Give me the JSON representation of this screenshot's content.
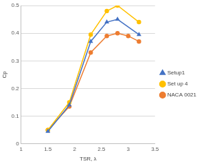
{
  "chart_data": {
    "type": "line",
    "x_label": "TSR, λ",
    "y_label": "Cp",
    "xlim": [
      1,
      3.5
    ],
    "xticks": [
      1,
      1.5,
      2,
      2.5,
      3,
      3.5
    ],
    "ylim": [
      0,
      0.5
    ],
    "yticks": [
      0,
      0.1,
      0.2,
      0.3,
      0.4,
      0.5
    ],
    "grid": "y",
    "legend": "right",
    "series": [
      {
        "name": "Setup1",
        "color": "#4472c4",
        "marker": "triangle",
        "x": [
          1.5,
          1.9,
          2.3,
          2.6,
          2.8,
          3.2
        ],
        "values": [
          0.045,
          0.14,
          0.37,
          0.44,
          0.45,
          0.395
        ]
      },
      {
        "name": "Set up 4",
        "color": "#ffc000",
        "marker": "circle",
        "x": [
          1.5,
          1.9,
          2.3,
          2.6,
          2.8,
          3.2
        ],
        "values": [
          0.05,
          0.15,
          0.395,
          0.48,
          0.5,
          0.44
        ]
      },
      {
        "name": "NACA 0021",
        "color": "#ed7d31",
        "marker": "circle",
        "x": [
          1.5,
          1.9,
          2.3,
          2.6,
          2.8,
          3.0,
          3.2
        ],
        "values": [
          0.05,
          0.135,
          0.33,
          0.39,
          0.4,
          0.39,
          0.37
        ]
      }
    ]
  }
}
